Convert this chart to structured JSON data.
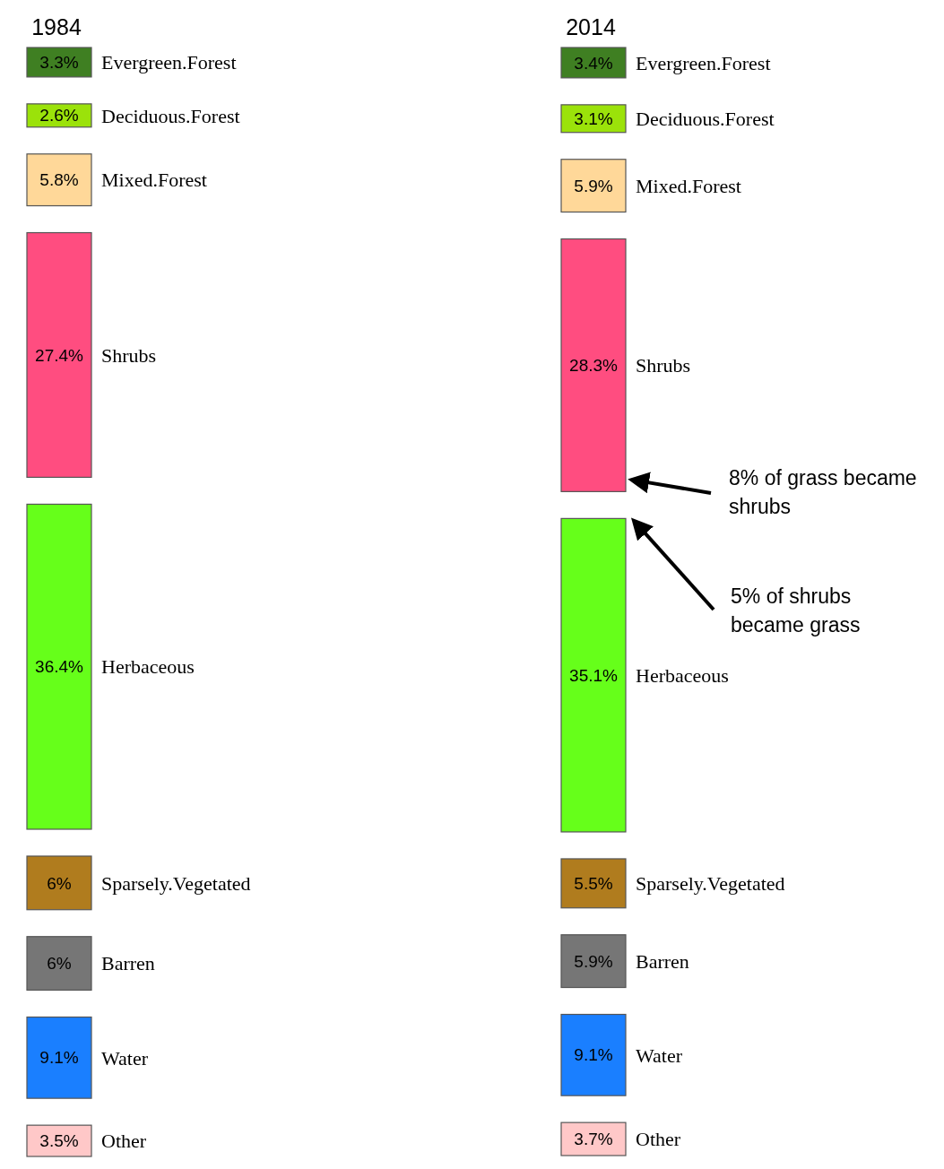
{
  "chart_data": {
    "type": "other",
    "categories": [
      "Evergreen.Forest",
      "Deciduous.Forest",
      "Mixed.Forest",
      "Shrubs",
      "Herbaceous",
      "Sparsely.Vegetated",
      "Barren",
      "Water",
      "Other"
    ],
    "series": [
      {
        "name": "1984",
        "colors": [
          "#3f7f22",
          "#9be20a",
          "#ffd899",
          "#ff4d80",
          "#66ff1a",
          "#b07c1e",
          "#767676",
          "#1a7fff",
          "#ffc8c8"
        ],
        "values": [
          3.3,
          2.6,
          5.8,
          27.4,
          36.4,
          6,
          6,
          9.1,
          3.5
        ],
        "value_labels": [
          "3.3%",
          "2.6%",
          "5.8%",
          "27.4%",
          "36.4%",
          "6%",
          "6%",
          "9.1%",
          "3.5%"
        ]
      },
      {
        "name": "2014",
        "colors": [
          "#3f7f22",
          "#9be20a",
          "#ffd899",
          "#ff4d80",
          "#66ff1a",
          "#b07c1e",
          "#767676",
          "#1a7fff",
          "#ffc8c8"
        ],
        "values": [
          3.4,
          3.1,
          5.9,
          28.3,
          35.1,
          5.5,
          5.9,
          9.1,
          3.7
        ],
        "value_labels": [
          "3.4%",
          "3.1%",
          "5.9%",
          "28.3%",
          "35.1%",
          "5.5%",
          "5.9%",
          "9.1%",
          "3.7%"
        ]
      }
    ],
    "annotations": [
      "8% of grass became shrubs",
      "5% of shrubs became grass"
    ]
  }
}
